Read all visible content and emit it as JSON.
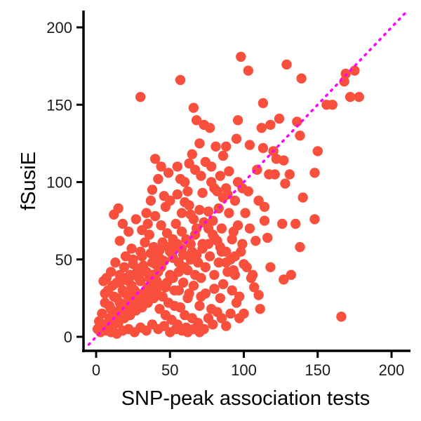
{
  "chart_data": {
    "type": "scatter",
    "title": "",
    "xlabel": "SNP-peak association tests",
    "ylabel": "fSusiE",
    "xlim": [
      -8,
      210
    ],
    "ylim": [
      -8,
      210
    ],
    "xticks": [
      0,
      50,
      100,
      150,
      200
    ],
    "yticks": [
      0,
      50,
      100,
      150,
      200
    ],
    "grid": false,
    "legend": "none",
    "reference_line": {
      "style": "dotted",
      "color": "#ff00ff",
      "slope": 1,
      "intercept": 0,
      "x": [
        -5,
        210
      ]
    },
    "point_color": "#f8503c",
    "series": [
      {
        "points": [
          [
            166,
            13
          ],
          [
            98,
            181
          ],
          [
            129,
            176
          ],
          [
            57,
            166
          ],
          [
            30,
            155
          ],
          [
            103,
            172
          ],
          [
            113,
            151
          ],
          [
            139,
            167
          ],
          [
            136,
            139
          ],
          [
            127,
            114
          ],
          [
            148,
            76
          ],
          [
            148,
            106
          ],
          [
            138,
            58
          ],
          [
            126,
            73
          ],
          [
            132,
            40
          ],
          [
            127,
            37
          ],
          [
            114,
            75
          ],
          [
            100,
            47
          ],
          [
            111,
            18
          ],
          [
            105,
            38
          ],
          [
            98,
            55
          ],
          [
            97,
            12
          ],
          [
            110,
            27
          ],
          [
            107,
            32
          ],
          [
            92,
            63
          ],
          [
            93,
            43
          ],
          [
            90,
            107
          ],
          [
            86,
            117
          ],
          [
            88,
            123
          ],
          [
            95,
            128
          ],
          [
            103,
            94
          ],
          [
            109,
            108
          ],
          [
            117,
            105
          ],
          [
            113,
            122
          ],
          [
            122,
            115
          ],
          [
            118,
            137
          ],
          [
            124,
            141
          ],
          [
            120,
            120
          ],
          [
            128,
            99
          ],
          [
            131,
            105
          ],
          [
            135,
            73
          ],
          [
            140,
            90
          ],
          [
            138,
            130
          ],
          [
            110,
            88
          ],
          [
            104,
            70
          ],
          [
            101,
            80
          ],
          [
            114,
            84
          ],
          [
            116,
            64
          ],
          [
            118,
            45
          ],
          [
            108,
            62
          ],
          [
            60,
            100
          ],
          [
            66,
            148
          ],
          [
            68,
            140
          ],
          [
            73,
            137
          ],
          [
            77,
            135
          ],
          [
            81,
            123
          ],
          [
            84,
            104
          ],
          [
            88,
            96
          ],
          [
            78,
            110
          ],
          [
            74,
            113
          ],
          [
            70,
            125
          ],
          [
            65,
            118
          ],
          [
            62,
            94
          ],
          [
            55,
            110
          ],
          [
            60,
            87
          ],
          [
            80,
            96
          ],
          [
            72,
            93
          ],
          [
            83,
            83
          ],
          [
            90,
            80
          ],
          [
            94,
            88
          ],
          [
            96,
            100
          ],
          [
            86,
            90
          ],
          [
            76,
            81
          ],
          [
            85,
            70
          ],
          [
            79,
            66
          ],
          [
            72,
            60
          ],
          [
            68,
            70
          ],
          [
            64,
            79
          ],
          [
            58,
            68
          ],
          [
            54,
            73
          ],
          [
            52,
            63
          ],
          [
            47,
            84
          ],
          [
            44,
            72
          ],
          [
            40,
            78
          ],
          [
            37,
            88
          ],
          [
            34,
            80
          ],
          [
            31,
            69
          ],
          [
            27,
            76
          ],
          [
            22,
            68
          ],
          [
            18,
            73
          ],
          [
            16,
            62
          ],
          [
            12,
            79
          ],
          [
            15,
            83
          ],
          [
            24,
            57
          ],
          [
            20,
            52
          ],
          [
            25,
            47
          ],
          [
            30,
            55
          ],
          [
            33,
            61
          ],
          [
            36,
            66
          ],
          [
            39,
            58
          ],
          [
            42,
            52
          ],
          [
            45,
            61
          ],
          [
            48,
            67
          ],
          [
            50,
            55
          ],
          [
            53,
            58
          ],
          [
            56,
            48
          ],
          [
            59,
            53
          ],
          [
            62,
            43
          ],
          [
            65,
            55
          ],
          [
            69,
            48
          ],
          [
            71,
            38
          ],
          [
            74,
            45
          ],
          [
            77,
            52
          ],
          [
            80,
            40
          ],
          [
            83,
            48
          ],
          [
            86,
            34
          ],
          [
            89,
            42
          ],
          [
            92,
            30
          ],
          [
            95,
            22
          ],
          [
            84,
            25
          ],
          [
            80,
            31
          ],
          [
            78,
            18
          ],
          [
            74,
            28
          ],
          [
            70,
            20
          ],
          [
            66,
            33
          ],
          [
            62,
            25
          ],
          [
            60,
            14
          ],
          [
            56,
            30
          ],
          [
            53,
            20
          ],
          [
            50,
            40
          ],
          [
            47,
            32
          ],
          [
            44,
            45
          ],
          [
            41,
            28
          ],
          [
            38,
            40
          ],
          [
            35,
            32
          ],
          [
            32,
            46
          ],
          [
            29,
            38
          ],
          [
            26,
            30
          ],
          [
            23,
            40
          ],
          [
            20,
            28
          ],
          [
            17,
            36
          ],
          [
            14,
            25
          ],
          [
            11,
            33
          ],
          [
            9,
            20
          ],
          [
            6,
            28
          ],
          [
            4,
            15
          ],
          [
            2,
            10
          ],
          [
            1,
            5
          ],
          [
            3,
            3
          ],
          [
            5,
            8
          ],
          [
            7,
            4
          ],
          [
            9,
            12
          ],
          [
            11,
            6
          ],
          [
            13,
            16
          ],
          [
            15,
            9
          ],
          [
            17,
            19
          ],
          [
            19,
            12
          ],
          [
            21,
            21
          ],
          [
            23,
            14
          ],
          [
            25,
            24
          ],
          [
            27,
            17
          ],
          [
            29,
            26
          ],
          [
            31,
            19
          ],
          [
            33,
            29
          ],
          [
            35,
            22
          ],
          [
            37,
            33
          ],
          [
            39,
            25
          ],
          [
            41,
            36
          ],
          [
            43,
            18
          ],
          [
            45,
            26
          ],
          [
            47,
            14
          ],
          [
            49,
            22
          ],
          [
            51,
            11
          ],
          [
            53,
            30
          ],
          [
            55,
            8
          ],
          [
            57,
            19
          ],
          [
            59,
            35
          ],
          [
            61,
            6
          ],
          [
            63,
            28
          ],
          [
            65,
            12
          ],
          [
            67,
            40
          ],
          [
            69,
            9
          ],
          [
            71,
            26
          ],
          [
            73,
            5
          ],
          [
            76,
            12
          ],
          [
            79,
            8
          ],
          [
            82,
            16
          ],
          [
            85,
            12
          ],
          [
            88,
            7
          ],
          [
            91,
            15
          ],
          [
            94,
            40
          ],
          [
            97,
            26
          ],
          [
            100,
            15
          ],
          [
            10,
            3
          ],
          [
            14,
            2
          ],
          [
            18,
            4
          ],
          [
            22,
            5
          ],
          [
            26,
            3
          ],
          [
            30,
            6
          ],
          [
            34,
            4
          ],
          [
            38,
            8
          ],
          [
            42,
            5
          ],
          [
            46,
            7
          ],
          [
            50,
            3
          ],
          [
            54,
            5
          ],
          [
            58,
            4
          ],
          [
            62,
            3
          ],
          [
            66,
            5
          ],
          [
            70,
            3
          ],
          [
            8,
            8
          ],
          [
            12,
            10
          ],
          [
            16,
            14
          ],
          [
            20,
            17
          ],
          [
            24,
            19
          ],
          [
            28,
            22
          ],
          [
            32,
            24
          ],
          [
            36,
            27
          ],
          [
            40,
            30
          ],
          [
            44,
            33
          ],
          [
            48,
            35
          ],
          [
            52,
            38
          ],
          [
            56,
            42
          ],
          [
            60,
            45
          ],
          [
            64,
            50
          ],
          [
            68,
            53
          ],
          [
            72,
            57
          ],
          [
            76,
            60
          ],
          [
            80,
            64
          ],
          [
            84,
            58
          ],
          [
            88,
            55
          ],
          [
            10,
            42
          ],
          [
            13,
            48
          ],
          [
            16,
            40
          ],
          [
            19,
            45
          ],
          [
            22,
            36
          ],
          [
            25,
            50
          ],
          [
            28,
            44
          ],
          [
            31,
            52
          ],
          [
            34,
            42
          ],
          [
            37,
            54
          ],
          [
            40,
            47
          ],
          [
            43,
            56
          ],
          [
            46,
            49
          ],
          [
            49,
            58
          ],
          [
            52,
            51
          ],
          [
            55,
            60
          ],
          [
            58,
            57
          ],
          [
            61,
            63
          ],
          [
            64,
            60
          ],
          [
            67,
            66
          ],
          [
            6,
            22
          ],
          [
            8,
            30
          ],
          [
            10,
            18
          ],
          [
            12,
            26
          ],
          [
            14,
            35
          ],
          [
            16,
            22
          ],
          [
            18,
            30
          ],
          [
            20,
            38
          ],
          [
            22,
            25
          ],
          [
            24,
            33
          ],
          [
            26,
            40
          ],
          [
            28,
            28
          ],
          [
            30,
            36
          ],
          [
            32,
            43
          ],
          [
            34,
            30
          ],
          [
            36,
            38
          ],
          [
            38,
            48
          ],
          [
            40,
            35
          ],
          [
            42,
            42
          ],
          [
            44,
            50
          ],
          [
            5,
            36
          ],
          [
            7,
            38
          ],
          [
            35,
            73
          ],
          [
            38,
            95
          ],
          [
            42,
            102
          ],
          [
            46,
            91
          ],
          [
            50,
            88
          ],
          [
            55,
            92
          ],
          [
            58,
            80
          ],
          [
            63,
            85
          ],
          [
            66,
            76
          ],
          [
            70,
            82
          ],
          [
            73,
            74
          ],
          [
            76,
            70
          ],
          [
            79,
            75
          ],
          [
            82,
            62
          ],
          [
            85,
            55
          ],
          [
            88,
            48
          ],
          [
            91,
            50
          ],
          [
            94,
            52
          ],
          [
            99,
            60
          ],
          [
            102,
            45
          ],
          [
            106,
            40
          ],
          [
            96,
            72
          ],
          [
            93,
            68
          ],
          [
            89,
            92
          ],
          [
            82,
            94
          ],
          [
            78,
            100
          ],
          [
            71,
            104
          ],
          [
            67,
            108
          ],
          [
            63,
            112
          ],
          [
            57,
            102
          ],
          [
            49,
            106
          ],
          [
            44,
            110
          ],
          [
            40,
            115
          ],
          [
            99,
            96
          ],
          [
            104,
            124
          ],
          [
            96,
            140
          ],
          [
            112,
            135
          ],
          [
            121,
            105
          ],
          [
            150,
            120
          ],
          [
            160,
            150
          ],
          [
            168,
            165
          ],
          [
            172,
            155
          ],
          [
            175,
            172
          ],
          [
            178,
            155
          ],
          [
            169,
            170
          ],
          [
            156,
            150
          ]
        ]
      }
    ]
  }
}
